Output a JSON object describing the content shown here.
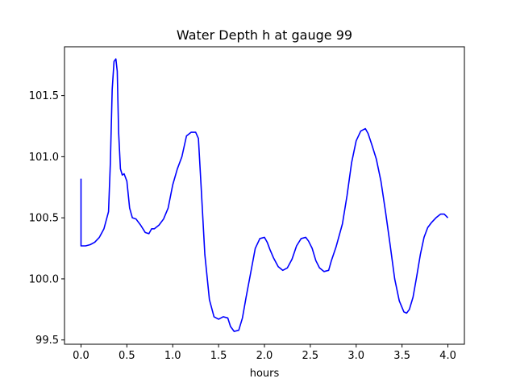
{
  "chart_data": {
    "type": "line",
    "title": "Water Depth h at gauge 99",
    "xlabel": "hours",
    "ylabel": "",
    "xlim": [
      -0.18,
      4.18
    ],
    "ylim": [
      99.465,
      101.9
    ],
    "xticks": [
      0.0,
      0.5,
      1.0,
      1.5,
      2.0,
      2.5,
      3.0,
      3.5,
      4.0
    ],
    "xtick_labels": [
      "0.0",
      "0.5",
      "1.0",
      "1.5",
      "2.0",
      "2.5",
      "3.0",
      "3.5",
      "4.0"
    ],
    "yticks": [
      99.5,
      100.0,
      100.5,
      101.0,
      101.5
    ],
    "ytick_labels": [
      "99.5",
      "100.0",
      "100.5",
      "101.0",
      "101.5"
    ],
    "grid": false,
    "series": [
      {
        "color": "#0000ff",
        "x": [
          0.0,
          0.0,
          0.05,
          0.1,
          0.15,
          0.2,
          0.25,
          0.3,
          0.32,
          0.34,
          0.36,
          0.38,
          0.395,
          0.41,
          0.43,
          0.45,
          0.47,
          0.5,
          0.53,
          0.56,
          0.6,
          0.65,
          0.7,
          0.74,
          0.77,
          0.8,
          0.85,
          0.9,
          0.95,
          1.0,
          1.05,
          1.1,
          1.15,
          1.2,
          1.25,
          1.28,
          1.31,
          1.35,
          1.4,
          1.45,
          1.5,
          1.55,
          1.6,
          1.63,
          1.67,
          1.72,
          1.76,
          1.8,
          1.85,
          1.9,
          1.95,
          2.0,
          2.03,
          2.06,
          2.1,
          2.15,
          2.2,
          2.25,
          2.3,
          2.35,
          2.4,
          2.45,
          2.48,
          2.52,
          2.56,
          2.6,
          2.65,
          2.7,
          2.73,
          2.78,
          2.85,
          2.9,
          2.95,
          3.0,
          3.05,
          3.1,
          3.13,
          3.17,
          3.22,
          3.27,
          3.32,
          3.37,
          3.42,
          3.47,
          3.52,
          3.55,
          3.58,
          3.62,
          3.66,
          3.7,
          3.74,
          3.78,
          3.82,
          3.87,
          3.92,
          3.96,
          4.0
        ],
        "y": [
          100.82,
          100.27,
          100.27,
          100.28,
          100.3,
          100.34,
          100.41,
          100.55,
          100.95,
          101.55,
          101.78,
          101.8,
          101.7,
          101.2,
          100.9,
          100.85,
          100.86,
          100.8,
          100.58,
          100.5,
          100.49,
          100.44,
          100.38,
          100.37,
          100.41,
          100.41,
          100.44,
          100.49,
          100.58,
          100.77,
          100.9,
          101.0,
          101.17,
          101.2,
          101.2,
          101.15,
          100.75,
          100.2,
          99.83,
          99.69,
          99.67,
          99.69,
          99.68,
          99.61,
          99.57,
          99.58,
          99.68,
          99.85,
          100.05,
          100.25,
          100.33,
          100.34,
          100.3,
          100.24,
          100.17,
          100.1,
          100.07,
          100.09,
          100.16,
          100.27,
          100.33,
          100.34,
          100.31,
          100.25,
          100.15,
          100.09,
          100.06,
          100.07,
          100.15,
          100.26,
          100.45,
          100.68,
          100.95,
          101.13,
          101.21,
          101.23,
          101.19,
          101.1,
          100.98,
          100.8,
          100.55,
          100.28,
          100.0,
          99.82,
          99.73,
          99.72,
          99.75,
          99.85,
          100.02,
          100.2,
          100.34,
          100.42,
          100.46,
          100.5,
          100.53,
          100.53,
          100.5
        ]
      }
    ]
  }
}
